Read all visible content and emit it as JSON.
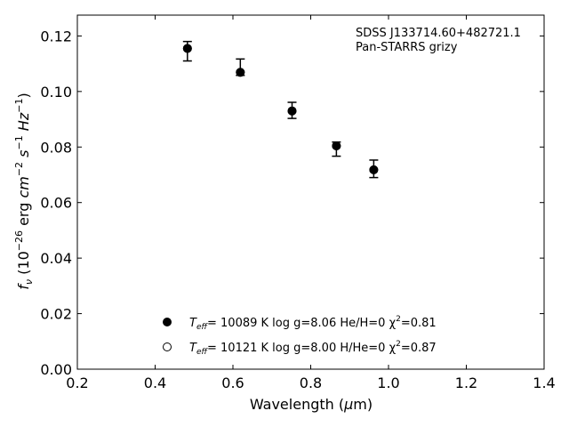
{
  "chart_data": {
    "type": "scatter",
    "title": "",
    "xlabel": "Wavelength (μm)",
    "ylabel": "fν (10⁻²⁶ erg cm⁻² s⁻¹ Hz⁻¹)",
    "xlim": [
      0.2,
      1.4
    ],
    "ylim": [
      0.0,
      0.1275
    ],
    "xticks": [
      "0.2",
      "0.4",
      "0.6",
      "0.8",
      "1.0",
      "1.2",
      "1.4"
    ],
    "yticks": [
      "0.00",
      "0.02",
      "0.04",
      "0.06",
      "0.08",
      "0.10",
      "0.12"
    ],
    "annotation": [
      "SDSS J133714.60+482721.1",
      "Pan-STARRS grizy"
    ],
    "series": [
      {
        "marker": "filled-circle",
        "color": "#000000",
        "x": [
          0.483,
          0.619,
          0.752,
          0.866,
          0.962
        ],
        "y": [
          0.1155,
          0.1069,
          0.093,
          0.0804,
          0.0718
        ],
        "yerr_low": [
          0.111,
          0.1058,
          0.0903,
          0.0767,
          0.069
        ],
        "yerr_high": [
          0.118,
          0.1117,
          0.0961,
          0.0818,
          0.0753
        ]
      },
      {
        "marker": "open-circle",
        "color": "#000000",
        "x": [
          0.483,
          0.619,
          0.752,
          0.866,
          0.962
        ],
        "y": [
          0.1155,
          0.1069,
          0.093,
          0.0804,
          0.0718
        ]
      }
    ],
    "legend": {
      "placement": "lower-center",
      "entries": [
        {
          "marker": "filled-circle",
          "label_main": "T",
          "label_sub": "eff",
          "label_rest": "= 10089 K  log g=8.06  He/H=0  χ",
          "label_sup": "2",
          "label_end": "=0.81"
        },
        {
          "marker": "open-circle",
          "label_main": "T",
          "label_sub": "eff",
          "label_rest": "= 10121 K  log g=8.00  H/He=0  χ",
          "label_sup": "2",
          "label_end": "=0.87"
        }
      ]
    }
  }
}
